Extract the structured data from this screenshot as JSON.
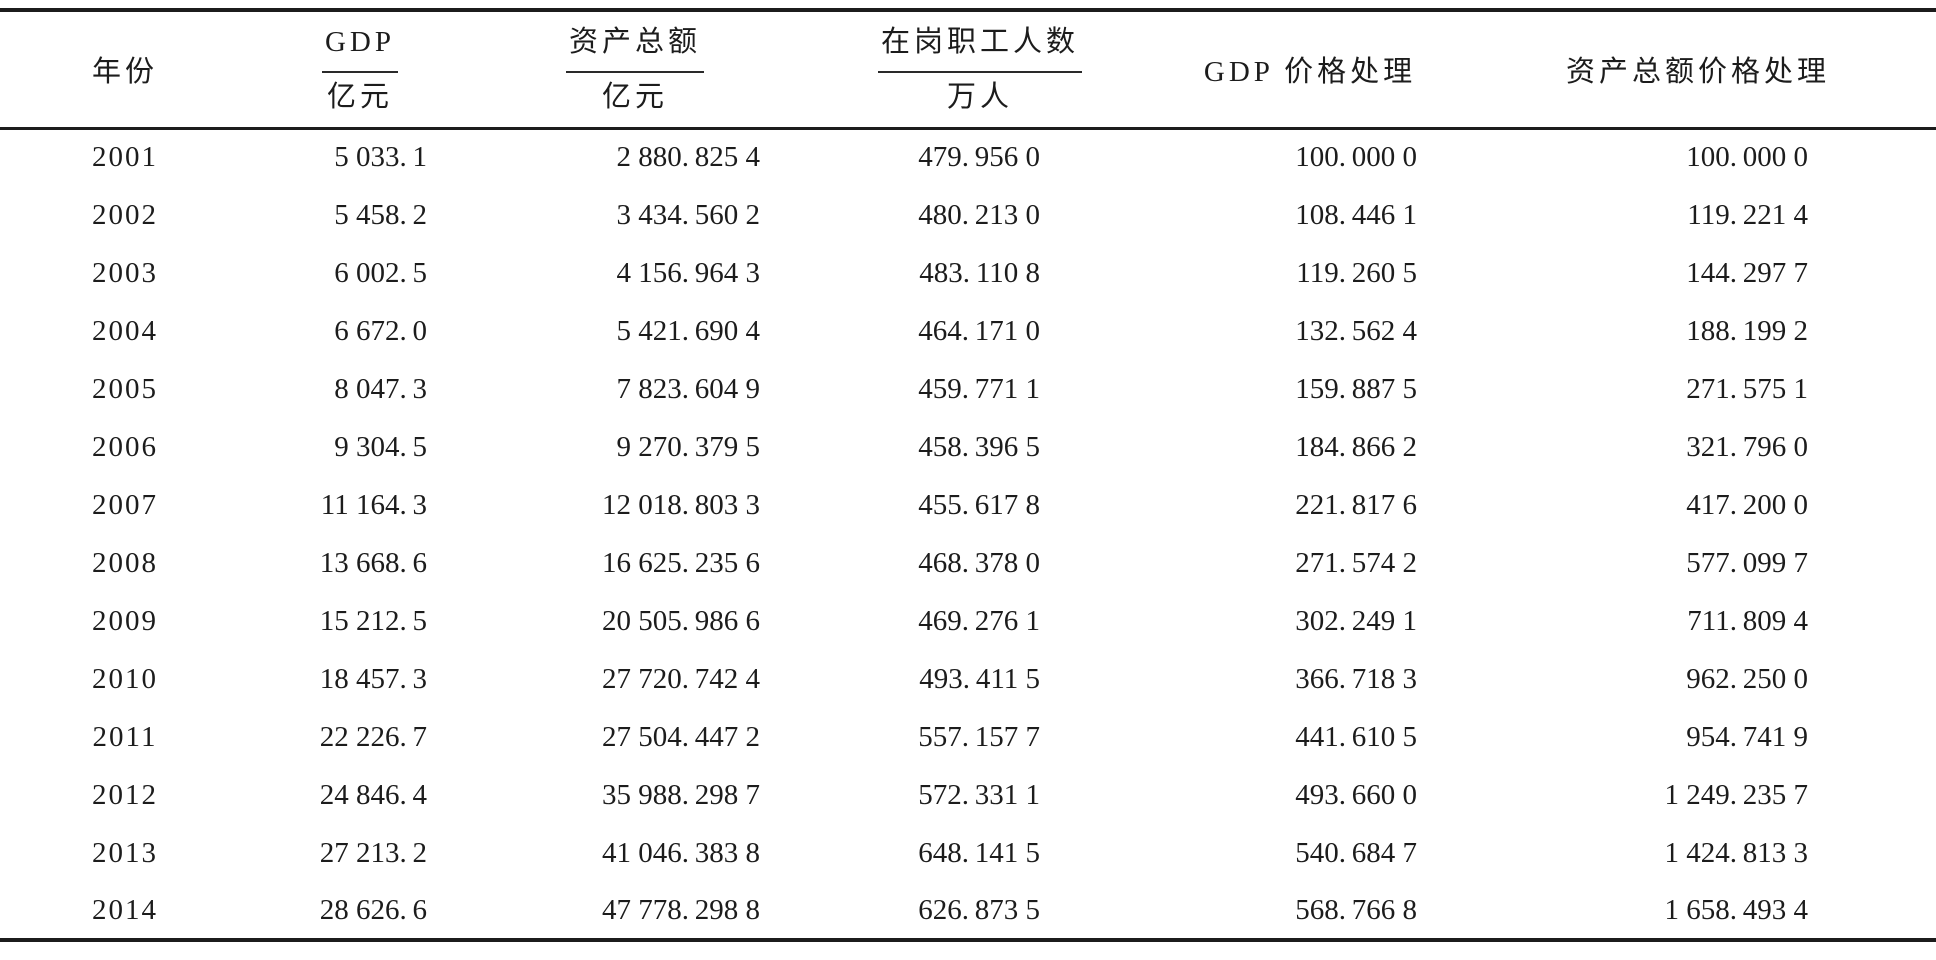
{
  "ink_color": "#1c1c1c",
  "table": {
    "columns": [
      {
        "label": "年份",
        "unit": ""
      },
      {
        "label": "GDP",
        "unit": "亿元"
      },
      {
        "label": "资产总额",
        "unit": "亿元"
      },
      {
        "label": "在岗职工人数",
        "unit": "万人"
      },
      {
        "label": "GDP 价格处理",
        "unit": ""
      },
      {
        "label": "资产总额价格处理",
        "unit": ""
      }
    ],
    "rows": [
      [
        "2001",
        "5 033.1",
        "2 880.825 4",
        "479.956 0",
        "100.000 0",
        "100.000 0"
      ],
      [
        "2002",
        "5 458.2",
        "3 434.560 2",
        "480.213 0",
        "108.446 1",
        "119.221 4"
      ],
      [
        "2003",
        "6 002.5",
        "4 156.964 3",
        "483.110 8",
        "119.260 5",
        "144.297 7"
      ],
      [
        "2004",
        "6 672.0",
        "5 421.690 4",
        "464.171 0",
        "132.562 4",
        "188.199 2"
      ],
      [
        "2005",
        "8 047.3",
        "7 823.604 9",
        "459.771 1",
        "159.887 5",
        "271.575 1"
      ],
      [
        "2006",
        "9 304.5",
        "9 270.379 5",
        "458.396 5",
        "184.866 2",
        "321.796 0"
      ],
      [
        "2007",
        "11 164.3",
        "12 018.803 3",
        "455.617 8",
        "221.817 6",
        "417.200 0"
      ],
      [
        "2008",
        "13 668.6",
        "16 625.235 6",
        "468.378 0",
        "271.574 2",
        "577.099 7"
      ],
      [
        "2009",
        "15 212.5",
        "20 505.986 6",
        "469.276 1",
        "302.249 1",
        "711.809 4"
      ],
      [
        "2010",
        "18 457.3",
        "27 720.742 4",
        "493.411 5",
        "366.718 3",
        "962.250 0"
      ],
      [
        "2011",
        "22 226.7",
        "27 504.447 2",
        "557.157 7",
        "441.610 5",
        "954.741 9"
      ],
      [
        "2012",
        "24 846.4",
        "35 988.298 7",
        "572.331 1",
        "493.660 0",
        "1 249.235 7"
      ],
      [
        "2013",
        "27 213.2",
        "41 046.383 8",
        "648.141 5",
        "540.684 7",
        "1 424.813 3"
      ],
      [
        "2014",
        "28 626.6",
        "47 778.298 8",
        "626.873 5",
        "568.766 8",
        "1 658.493 4"
      ]
    ]
  }
}
